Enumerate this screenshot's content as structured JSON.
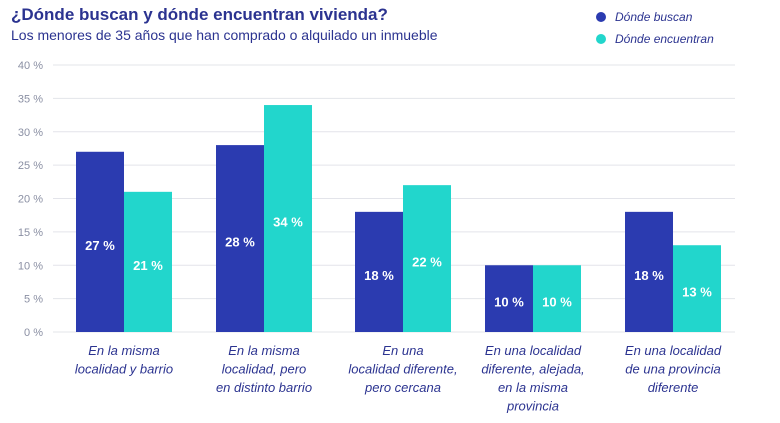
{
  "header": {
    "title": "¿Dónde buscan y dónde encuentran vivienda?",
    "subtitle": "Los menores de 35 años que han comprado o alquilado un inmueble"
  },
  "legend": [
    {
      "label": "Dónde buscan",
      "color": "#2b3bb0"
    },
    {
      "label": "Dónde encuentran",
      "color": "#22d6cc"
    }
  ],
  "chart_data": {
    "type": "bar",
    "title": "¿Dónde buscan y dónde encuentran vivienda?",
    "subtitle": "Los menores de 35 años que han comprado o alquilado un inmueble",
    "categories": [
      [
        "En la misma",
        "localidad y barrio"
      ],
      [
        "En la misma",
        "localidad, pero",
        "en distinto barrio"
      ],
      [
        "En una",
        "localidad diferente,",
        "pero cercana"
      ],
      [
        "En una localidad",
        "diferente, alejada,",
        "en la misma",
        "provincia"
      ],
      [
        "En una localidad",
        "de una provincia",
        "diferente"
      ]
    ],
    "series": [
      {
        "name": "Dónde buscan",
        "color": "#2b3bb0",
        "values": [
          27,
          28,
          18,
          10,
          18
        ],
        "data_labels": [
          "27 %",
          "28 %",
          "18 %",
          "10 %",
          "18 %"
        ]
      },
      {
        "name": "Dónde encuentran",
        "color": "#22d6cc",
        "values": [
          21,
          34,
          22,
          10,
          13
        ],
        "data_labels": [
          "21 %",
          "34 %",
          "22 %",
          "10 %",
          "13 %"
        ]
      }
    ],
    "ylim": [
      0,
      40
    ],
    "yticks": [
      0,
      5,
      10,
      15,
      20,
      25,
      30,
      35,
      40
    ],
    "ytick_labels": [
      "0 %",
      "5 %",
      "10 %",
      "15 %",
      "20 %",
      "25 %",
      "30 %",
      "35 %",
      "40 %"
    ],
    "grid": true,
    "legend_position": "top-right"
  }
}
